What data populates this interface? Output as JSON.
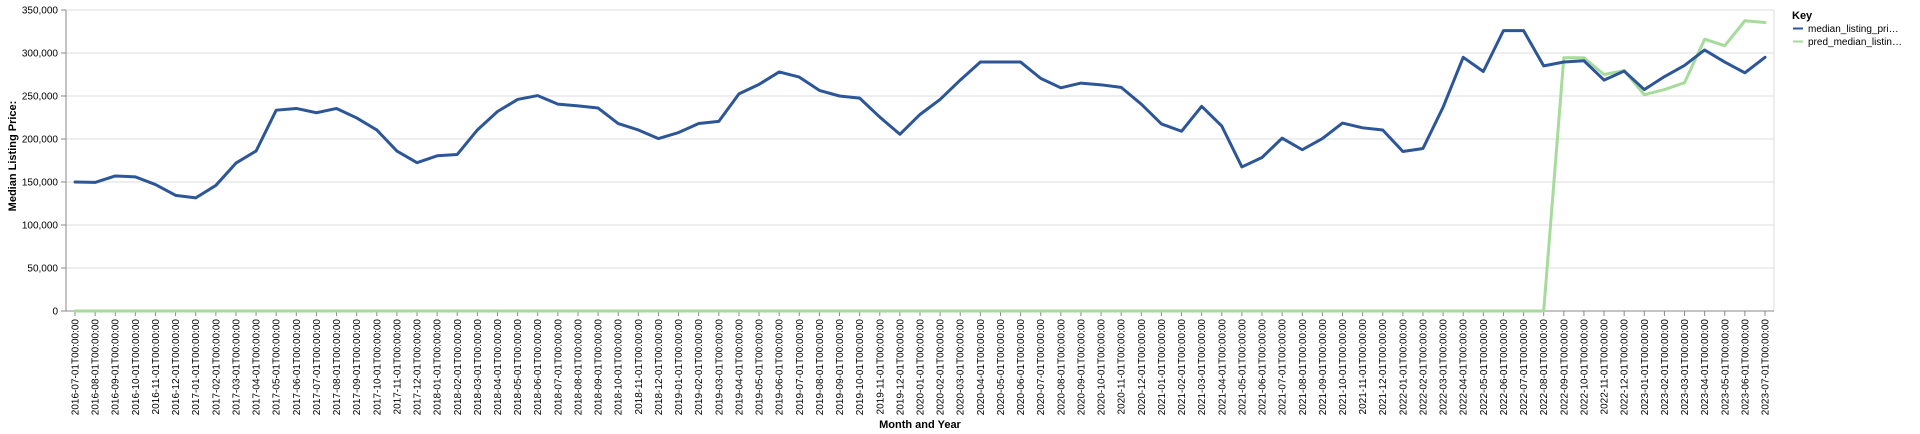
{
  "chart_data": {
    "type": "line",
    "title": "",
    "xlabel": "Month and Year",
    "ylabel": "Median Listing Price:",
    "ylim": [
      0,
      350000
    ],
    "yticks": [
      0,
      50000,
      100000,
      150000,
      200000,
      250000,
      300000,
      350000
    ],
    "ytick_labels": [
      "0",
      "50,000",
      "100,000",
      "150,000",
      "200,000",
      "250,000",
      "300,000",
      "350,000"
    ],
    "grid": true,
    "legend": {
      "title": "Key",
      "placement": "right",
      "items": [
        "median_listing_pri…",
        "pred_median_listin…"
      ]
    },
    "categories": [
      "2016-07-01T00:00:00",
      "2016-08-01T00:00:00",
      "2016-09-01T00:00:00",
      "2016-10-01T00:00:00",
      "2016-11-01T00:00:00",
      "2016-12-01T00:00:00",
      "2017-01-01T00:00:00",
      "2017-02-01T00:00:00",
      "2017-03-01T00:00:00",
      "2017-04-01T00:00:00",
      "2017-05-01T00:00:00",
      "2017-06-01T00:00:00",
      "2017-07-01T00:00:00",
      "2017-08-01T00:00:00",
      "2017-09-01T00:00:00",
      "2017-10-01T00:00:00",
      "2017-11-01T00:00:00",
      "2017-12-01T00:00:00",
      "2018-01-01T00:00:00",
      "2018-02-01T00:00:00",
      "2018-03-01T00:00:00",
      "2018-04-01T00:00:00",
      "2018-05-01T00:00:00",
      "2018-06-01T00:00:00",
      "2018-07-01T00:00:00",
      "2018-08-01T00:00:00",
      "2018-09-01T00:00:00",
      "2018-10-01T00:00:00",
      "2018-11-01T00:00:00",
      "2018-12-01T00:00:00",
      "2019-01-01T00:00:00",
      "2019-02-01T00:00:00",
      "2019-03-01T00:00:00",
      "2019-04-01T00:00:00",
      "2019-05-01T00:00:00",
      "2019-06-01T00:00:00",
      "2019-07-01T00:00:00",
      "2019-08-01T00:00:00",
      "2019-09-01T00:00:00",
      "2019-10-01T00:00:00",
      "2019-11-01T00:00:00",
      "2019-12-01T00:00:00",
      "2020-01-01T00:00:00",
      "2020-02-01T00:00:00",
      "2020-03-01T00:00:00",
      "2020-04-01T00:00:00",
      "2020-05-01T00:00:00",
      "2020-06-01T00:00:00",
      "2020-07-01T00:00:00",
      "2020-08-01T00:00:00",
      "2020-09-01T00:00:00",
      "2020-10-01T00:00:00",
      "2020-11-01T00:00:00",
      "2020-12-01T00:00:00",
      "2021-01-01T00:00:00",
      "2021-02-01T00:00:00",
      "2021-03-01T00:00:00",
      "2021-04-01T00:00:00",
      "2021-05-01T00:00:00",
      "2021-06-01T00:00:00",
      "2021-07-01T00:00:00",
      "2021-08-01T00:00:00",
      "2021-09-01T00:00:00",
      "2021-10-01T00:00:00",
      "2021-11-01T00:00:00",
      "2021-12-01T00:00:00",
      "2022-01-01T00:00:00",
      "2022-02-01T00:00:00",
      "2022-03-01T00:00:00",
      "2022-04-01T00:00:00",
      "2022-05-01T00:00:00",
      "2022-06-01T00:00:00",
      "2022-07-01T00:00:00",
      "2022-08-01T00:00:00",
      "2022-09-01T00:00:00",
      "2022-10-01T00:00:00",
      "2022-11-01T00:00:00",
      "2022-12-01T00:00:00",
      "2023-01-01T00:00:00",
      "2023-02-01T00:00:00",
      "2023-03-01T00:00:00",
      "2023-04-01T00:00:00",
      "2023-05-01T00:00:00",
      "2023-06-01T00:00:00",
      "2023-07-01T00:00:00"
    ],
    "series": [
      {
        "name": "median_listing_pri…",
        "color": "#2c5697",
        "values": [
          150000,
          149500,
          157000,
          156000,
          147000,
          134500,
          131500,
          146000,
          172000,
          186000,
          233500,
          235500,
          230500,
          235500,
          224500,
          210500,
          186000,
          172500,
          180500,
          182000,
          210500,
          232000,
          246000,
          250500,
          240500,
          238500,
          236000,
          218000,
          210500,
          200500,
          207500,
          218000,
          220500,
          252500,
          263500,
          278000,
          272000,
          256500,
          250000,
          247500,
          225500,
          205500,
          228500,
          246000,
          268500,
          289500,
          289500,
          289500,
          270500,
          259500,
          265000,
          263000,
          260000,
          240500,
          217500,
          209000,
          238000,
          215000,
          167500,
          178500,
          201000,
          187500,
          200500,
          218500,
          213000,
          210500,
          185500,
          189000,
          237000,
          295000,
          278500,
          326000,
          326000,
          285000,
          289500,
          291000,
          268500,
          279000,
          257500,
          272500,
          285500,
          303500,
          289500,
          277000,
          295000
        ]
      },
      {
        "name": "pred_median_listin…",
        "color": "#a6db9c",
        "values": [
          0,
          0,
          0,
          0,
          0,
          0,
          0,
          0,
          0,
          0,
          0,
          0,
          0,
          0,
          0,
          0,
          0,
          0,
          0,
          0,
          0,
          0,
          0,
          0,
          0,
          0,
          0,
          0,
          0,
          0,
          0,
          0,
          0,
          0,
          0,
          0,
          0,
          0,
          0,
          0,
          0,
          0,
          0,
          0,
          0,
          0,
          0,
          0,
          0,
          0,
          0,
          0,
          0,
          0,
          0,
          0,
          0,
          0,
          0,
          0,
          0,
          0,
          0,
          0,
          0,
          0,
          0,
          0,
          0,
          0,
          0,
          0,
          0,
          0,
          294500,
          294500,
          275000,
          279500,
          251500,
          257500,
          265500,
          316000,
          308500,
          337500,
          335500
        ]
      }
    ]
  }
}
